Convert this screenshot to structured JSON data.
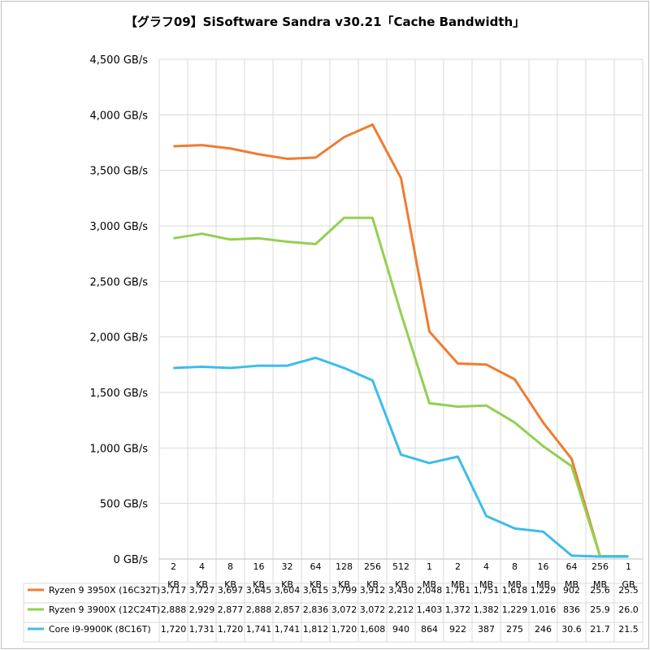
{
  "chart_data": {
    "type": "line",
    "title": "【グラフ09】SiSoftware Sandra v30.21「Cache Bandwidth」",
    "ylim": [
      0,
      4500
    ],
    "yticks": [
      "0 GB/s",
      "500 GB/s",
      "1,000 GB/s",
      "1,500 GB/s",
      "2,000 GB/s",
      "2,500 GB/s",
      "3,000 GB/s",
      "3,500 GB/s",
      "4,000 GB/s",
      "4,500 GB/s"
    ],
    "grid": true,
    "legend": "data-table",
    "categories": [
      [
        "2",
        "KB"
      ],
      [
        "4",
        "KB"
      ],
      [
        "8",
        "KB"
      ],
      [
        "16",
        "KB"
      ],
      [
        "32",
        "KB"
      ],
      [
        "64",
        "KB"
      ],
      [
        "128",
        "KB"
      ],
      [
        "256",
        "KB"
      ],
      [
        "512",
        "KB"
      ],
      [
        "1",
        "MB"
      ],
      [
        "2",
        "MB"
      ],
      [
        "4",
        "MB"
      ],
      [
        "8",
        "MB"
      ],
      [
        "16",
        "MB"
      ],
      [
        "64",
        "MB"
      ],
      [
        "256",
        "MB"
      ],
      [
        "1",
        "GB"
      ]
    ],
    "series": [
      {
        "name": "Ryzen 9 3950X (16C32T)",
        "color": "#ED7D31",
        "values": [
          3717,
          3727,
          3697,
          3645,
          3604,
          3615,
          3799,
          3912,
          3430,
          2048,
          1761,
          1751,
          1618,
          1229,
          902,
          25.6,
          25.5
        ],
        "labels": [
          "3,717",
          "3,727",
          "3,697",
          "3,645",
          "3,604",
          "3,615",
          "3,799",
          "3,912",
          "3,430",
          "2,048",
          "1,761",
          "1,751",
          "1,618",
          "1,229",
          "902",
          "25.6",
          "25.5"
        ]
      },
      {
        "name": "Ryzen 9 3900X (12C24T)",
        "color": "#92D050",
        "values": [
          2888,
          2929,
          2877,
          2888,
          2857,
          2836,
          3072,
          3072,
          2212,
          1403,
          1372,
          1382,
          1229,
          1016,
          836,
          25.9,
          26.0
        ],
        "labels": [
          "2,888",
          "2,929",
          "2,877",
          "2,888",
          "2,857",
          "2,836",
          "3,072",
          "3,072",
          "2,212",
          "1,403",
          "1,372",
          "1,382",
          "1,229",
          "1,016",
          "836",
          "25.9",
          "26.0"
        ]
      },
      {
        "name": "Core i9-9900K (8C16T)",
        "color": "#3CBDE8",
        "values": [
          1720,
          1731,
          1720,
          1741,
          1741,
          1812,
          1720,
          1608,
          940,
          864,
          922,
          387,
          275,
          246,
          30.6,
          21.7,
          21.5
        ],
        "labels": [
          "1,720",
          "1,731",
          "1,720",
          "1,741",
          "1,741",
          "1,812",
          "1,720",
          "1,608",
          "940",
          "864",
          "922",
          "387",
          "275",
          "246",
          "30.6",
          "21.7",
          "21.5"
        ]
      }
    ]
  }
}
